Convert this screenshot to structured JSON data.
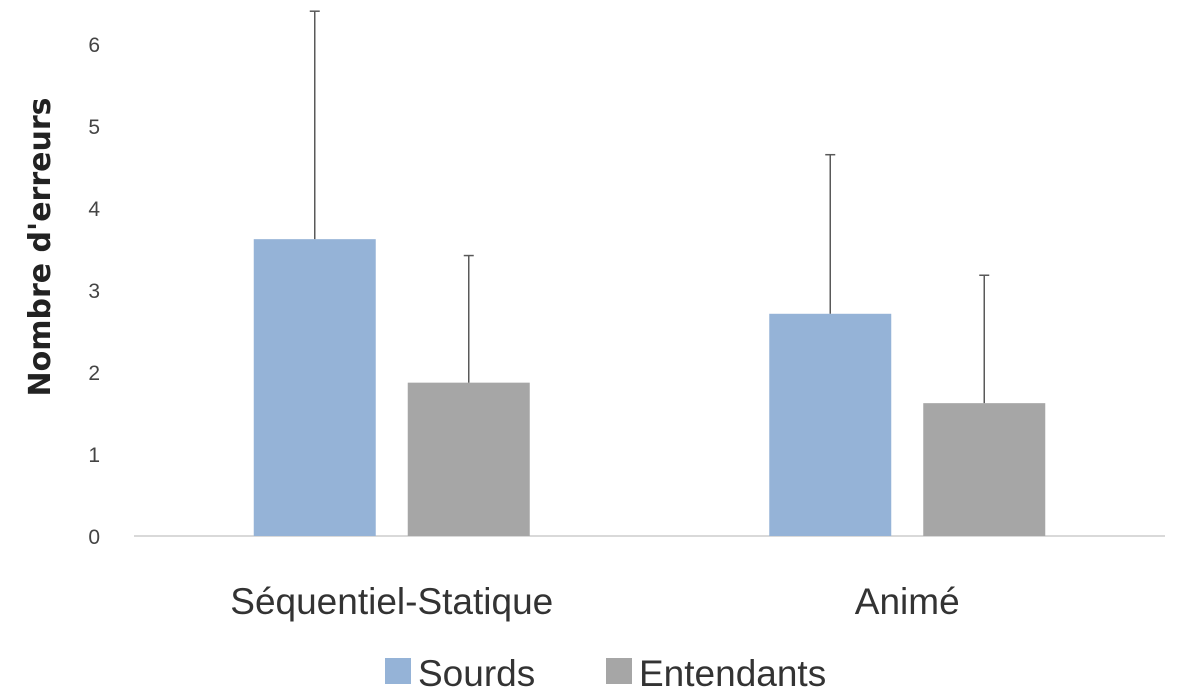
{
  "chart_data": {
    "type": "bar",
    "categories": [
      "Séquentiel-Statique",
      "Animé"
    ],
    "series": [
      {
        "name": "Sourds",
        "values": [
          3.62,
          2.71
        ],
        "error": [
          2.78,
          1.94
        ],
        "color": "#95b3d7"
      },
      {
        "name": "Entendants",
        "values": [
          1.87,
          1.62
        ],
        "error": [
          1.55,
          1.56
        ],
        "color": "#a6a6a6"
      }
    ],
    "ylabel": "Nombre d'erreurs",
    "xlabel": "",
    "ylim": [
      0,
      6
    ],
    "yticks": [
      0,
      1,
      2,
      3,
      4,
      5,
      6
    ],
    "grid": false,
    "legend_position": "bottom"
  }
}
